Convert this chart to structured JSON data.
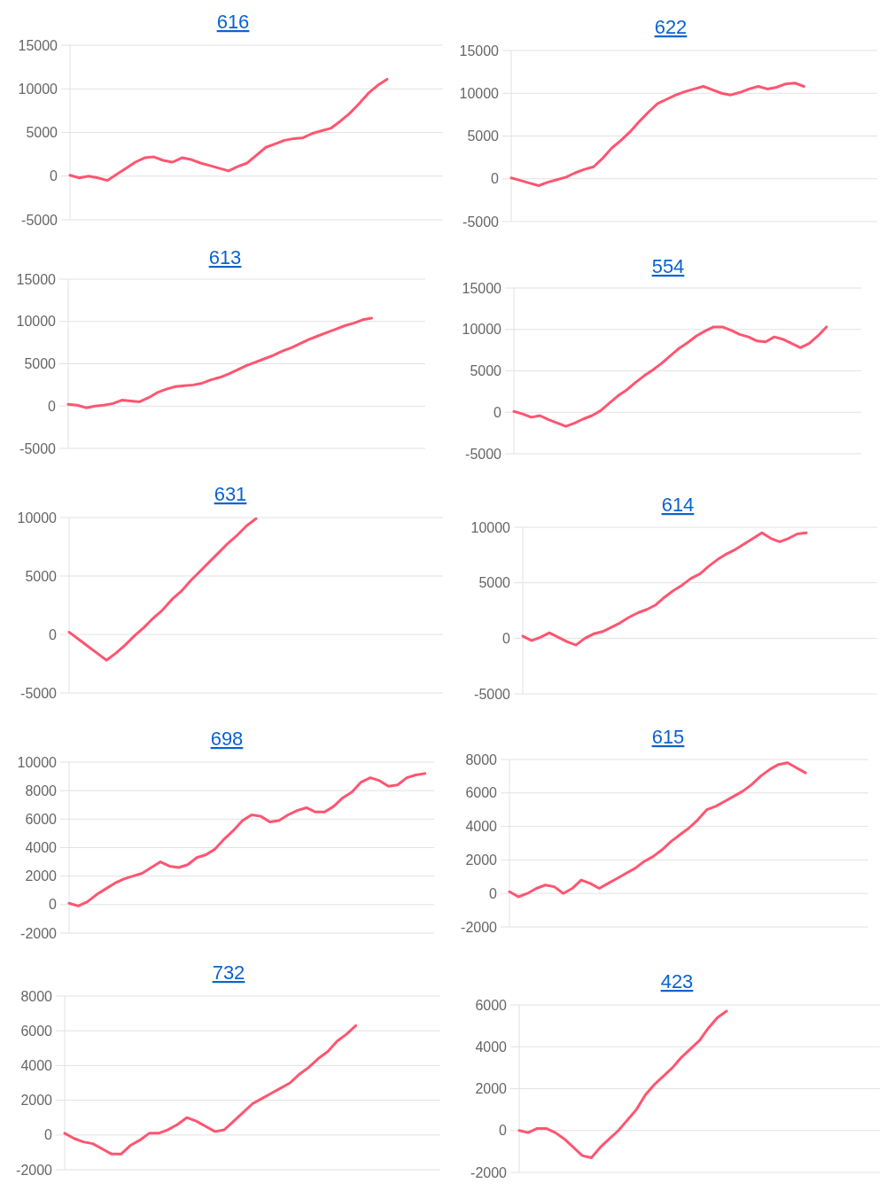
{
  "chart_data": [
    {
      "type": "line",
      "title": "616",
      "categories": [
        null,
        null,
        null,
        null,
        null,
        null,
        null,
        null,
        null,
        null,
        null,
        null,
        null,
        null,
        null,
        null,
        null,
        null,
        null,
        null,
        null,
        null,
        null,
        null,
        null,
        null,
        null,
        null,
        null,
        null,
        null,
        null,
        null,
        null,
        null,
        null,
        null,
        null,
        null,
        null,
        null
      ],
      "values": [
        100,
        -200,
        0,
        -200,
        -500,
        200,
        900,
        1600,
        2100,
        2200,
        1800,
        1600,
        2100,
        1900,
        1500,
        1200,
        900,
        600,
        1100,
        1500,
        2400,
        3300,
        3700,
        4100,
        4300,
        4400,
        4900,
        5200,
        5500,
        6300,
        7200,
        8300,
        9500,
        10400,
        11100,
        null,
        null,
        null,
        null,
        null,
        null
      ],
      "color": "#ff5570",
      "ylim": [
        -5000,
        15000
      ],
      "yticks": [
        -5000,
        0,
        5000,
        10000,
        15000
      ],
      "grid": "y",
      "tick_labels": "y"
    },
    {
      "type": "line",
      "title": "622",
      "categories": [
        null,
        null,
        null,
        null,
        null,
        null,
        null,
        null,
        null,
        null,
        null,
        null,
        null,
        null,
        null,
        null,
        null,
        null,
        null,
        null,
        null,
        null,
        null,
        null,
        null,
        null,
        null,
        null,
        null,
        null,
        null,
        null,
        null,
        null,
        null,
        null,
        null,
        null,
        null,
        null,
        null
      ],
      "values": [
        100,
        -200,
        -500,
        -800,
        -400,
        -100,
        200,
        700,
        1100,
        1400,
        2400,
        3600,
        4500,
        5500,
        6700,
        7800,
        8800,
        9300,
        9800,
        10200,
        10500,
        10800,
        10400,
        10000,
        9800,
        10100,
        10500,
        10800,
        10500,
        10700,
        11100,
        11200,
        10800,
        null,
        null,
        null,
        null,
        null,
        null,
        null,
        null
      ],
      "color": "#ff5570",
      "ylim": [
        -5000,
        15000
      ],
      "yticks": [
        -5000,
        0,
        5000,
        10000,
        15000
      ],
      "grid": "y",
      "tick_labels": "y"
    },
    {
      "type": "line",
      "title": "613",
      "categories": [
        null,
        null,
        null,
        null,
        null,
        null,
        null,
        null,
        null,
        null,
        null,
        null,
        null,
        null,
        null,
        null,
        null,
        null,
        null,
        null,
        null,
        null,
        null,
        null,
        null,
        null,
        null,
        null,
        null,
        null,
        null,
        null,
        null,
        null,
        null,
        null,
        null,
        null,
        null,
        null,
        null
      ],
      "values": [
        200,
        100,
        -200,
        0,
        100,
        300,
        700,
        600,
        500,
        1000,
        1600,
        2000,
        2300,
        2400,
        2500,
        2700,
        3100,
        3400,
        3800,
        4300,
        4800,
        5200,
        5600,
        6000,
        6500,
        6900,
        7400,
        7900,
        8300,
        8700,
        9100,
        9500,
        9800,
        10200,
        10400,
        null,
        null,
        null,
        null,
        null,
        null
      ],
      "color": "#ff5570",
      "ylim": [
        -5000,
        15000
      ],
      "yticks": [
        -5000,
        0,
        5000,
        10000,
        15000
      ],
      "grid": "y",
      "tick_labels": "y"
    },
    {
      "type": "line",
      "title": "554",
      "categories": [
        null,
        null,
        null,
        null,
        null,
        null,
        null,
        null,
        null,
        null,
        null,
        null,
        null,
        null,
        null,
        null,
        null,
        null,
        null,
        null,
        null,
        null,
        null,
        null,
        null,
        null,
        null,
        null,
        null,
        null,
        null,
        null,
        null,
        null,
        null,
        null,
        null,
        null,
        null,
        null,
        null
      ],
      "values": [
        100,
        -200,
        -600,
        -400,
        -900,
        -1300,
        -1700,
        -1300,
        -800,
        -400,
        200,
        1100,
        2000,
        2700,
        3600,
        4400,
        5100,
        5900,
        6800,
        7700,
        8400,
        9200,
        9800,
        10300,
        10300,
        9900,
        9400,
        9100,
        8600,
        8500,
        9100,
        8800,
        8300,
        7800,
        8300,
        9200,
        10300,
        null,
        null,
        null,
        null
      ],
      "color": "#ff5570",
      "ylim": [
        -5000,
        15000
      ],
      "yticks": [
        -5000,
        0,
        5000,
        10000,
        15000
      ],
      "grid": "y",
      "tick_labels": "y"
    },
    {
      "type": "line",
      "title": "631",
      "categories": [
        null,
        null,
        null,
        null,
        null,
        null,
        null,
        null,
        null,
        null,
        null,
        null,
        null,
        null,
        null,
        null,
        null,
        null,
        null,
        null,
        null,
        null,
        null,
        null,
        null,
        null,
        null,
        null,
        null,
        null,
        null,
        null,
        null,
        null,
        null,
        null,
        null,
        null,
        null,
        null,
        null
      ],
      "values": [
        200,
        -400,
        -1000,
        -1600,
        -2200,
        -1600,
        -900,
        -100,
        600,
        1400,
        2100,
        3000,
        3700,
        4600,
        5400,
        6200,
        7000,
        7800,
        8500,
        9300,
        9900,
        null,
        null,
        null,
        null,
        null,
        null,
        null,
        null,
        null,
        null,
        null,
        null,
        null,
        null,
        null,
        null,
        null,
        null,
        null,
        null
      ],
      "color": "#ff5570",
      "ylim": [
        -5000,
        10000
      ],
      "yticks": [
        -5000,
        0,
        5000,
        10000
      ],
      "grid": "y",
      "tick_labels": "y"
    },
    {
      "type": "line",
      "title": "614",
      "categories": [
        null,
        null,
        null,
        null,
        null,
        null,
        null,
        null,
        null,
        null,
        null,
        null,
        null,
        null,
        null,
        null,
        null,
        null,
        null,
        null,
        null,
        null,
        null,
        null,
        null,
        null,
        null,
        null,
        null,
        null,
        null,
        null,
        null,
        null,
        null,
        null,
        null,
        null,
        null,
        null,
        null
      ],
      "values": [
        200,
        -200,
        100,
        500,
        100,
        -300,
        -600,
        0,
        400,
        600,
        1000,
        1400,
        1900,
        2300,
        2600,
        3000,
        3700,
        4300,
        4800,
        5400,
        5800,
        6500,
        7100,
        7600,
        8000,
        8500,
        9000,
        9500,
        9000,
        8700,
        9000,
        9400,
        9500,
        null,
        null,
        null,
        null,
        null,
        null,
        null,
        null
      ],
      "color": "#ff5570",
      "ylim": [
        -5000,
        10000
      ],
      "yticks": [
        -5000,
        0,
        5000,
        10000
      ],
      "grid": "y",
      "tick_labels": "y"
    },
    {
      "type": "line",
      "title": "698",
      "categories": [
        null,
        null,
        null,
        null,
        null,
        null,
        null,
        null,
        null,
        null,
        null,
        null,
        null,
        null,
        null,
        null,
        null,
        null,
        null,
        null,
        null,
        null,
        null,
        null,
        null,
        null,
        null,
        null,
        null,
        null,
        null,
        null,
        null,
        null,
        null,
        null,
        null,
        null,
        null,
        null,
        null
      ],
      "values": [
        100,
        -100,
        200,
        700,
        1100,
        1500,
        1800,
        2000,
        2200,
        2600,
        3000,
        2700,
        2600,
        2800,
        3300,
        3500,
        3900,
        4600,
        5200,
        5900,
        6300,
        6200,
        5800,
        5900,
        6300,
        6600,
        6800,
        6500,
        6500,
        6900,
        7500,
        7900,
        8600,
        8900,
        8700,
        8300,
        8400,
        8900,
        9100,
        9200,
        null
      ],
      "color": "#ff5570",
      "ylim": [
        -2000,
        10000
      ],
      "yticks": [
        -2000,
        0,
        2000,
        4000,
        6000,
        8000,
        10000
      ],
      "grid": "y",
      "tick_labels": "y"
    },
    {
      "type": "line",
      "title": "615",
      "categories": [
        null,
        null,
        null,
        null,
        null,
        null,
        null,
        null,
        null,
        null,
        null,
        null,
        null,
        null,
        null,
        null,
        null,
        null,
        null,
        null,
        null,
        null,
        null,
        null,
        null,
        null,
        null,
        null,
        null,
        null,
        null,
        null,
        null,
        null,
        null,
        null,
        null,
        null,
        null,
        null,
        null
      ],
      "values": [
        100,
        -200,
        0,
        300,
        500,
        400,
        0,
        300,
        800,
        600,
        300,
        600,
        900,
        1200,
        1500,
        1900,
        2200,
        2600,
        3100,
        3500,
        3900,
        4400,
        5000,
        5200,
        5500,
        5800,
        6100,
        6500,
        7000,
        7400,
        7700,
        7800,
        7500,
        7200,
        null,
        null,
        null,
        null,
        null,
        null,
        null
      ],
      "color": "#ff5570",
      "ylim": [
        -2000,
        8000
      ],
      "yticks": [
        -2000,
        0,
        2000,
        4000,
        6000,
        8000
      ],
      "grid": "y",
      "tick_labels": "y"
    },
    {
      "type": "line",
      "title": "732",
      "categories": [
        null,
        null,
        null,
        null,
        null,
        null,
        null,
        null,
        null,
        null,
        null,
        null,
        null,
        null,
        null,
        null,
        null,
        null,
        null,
        null,
        null,
        null,
        null,
        null,
        null,
        null,
        null,
        null,
        null,
        null,
        null,
        null,
        null,
        null,
        null,
        null,
        null,
        null,
        null,
        null,
        null
      ],
      "values": [
        100,
        -200,
        -400,
        -500,
        -800,
        -1100,
        -1100,
        -600,
        -300,
        100,
        100,
        300,
        600,
        1000,
        800,
        500,
        200,
        300,
        800,
        1300,
        1800,
        2100,
        2400,
        2700,
        3000,
        3500,
        3900,
        4400,
        4800,
        5400,
        5800,
        6300,
        null,
        null,
        null,
        null,
        null,
        null,
        null,
        null,
        null
      ],
      "color": "#ff5570",
      "ylim": [
        -2000,
        8000
      ],
      "yticks": [
        -2000,
        0,
        2000,
        4000,
        6000,
        8000
      ],
      "grid": "y",
      "tick_labels": "y"
    },
    {
      "type": "line",
      "title": "423",
      "categories": [
        null,
        null,
        null,
        null,
        null,
        null,
        null,
        null,
        null,
        null,
        null,
        null,
        null,
        null,
        null,
        null,
        null,
        null,
        null,
        null,
        null,
        null,
        null,
        null,
        null,
        null,
        null,
        null,
        null,
        null,
        null,
        null,
        null,
        null,
        null,
        null,
        null,
        null,
        null,
        null,
        null
      ],
      "values": [
        0,
        -100,
        100,
        100,
        -100,
        -400,
        -800,
        -1200,
        -1300,
        -800,
        -400,
        0,
        500,
        1000,
        1700,
        2200,
        2600,
        3000,
        3500,
        3900,
        4300,
        4900,
        5400,
        5700,
        null,
        null,
        null,
        null,
        null,
        null,
        null,
        null,
        null,
        null,
        null,
        null,
        null,
        null,
        null,
        null,
        null
      ],
      "color": "#ff5570",
      "ylim": [
        -2000,
        6000
      ],
      "yticks": [
        -2000,
        0,
        2000,
        4000,
        6000
      ],
      "grid": "y",
      "tick_labels": "y"
    }
  ]
}
